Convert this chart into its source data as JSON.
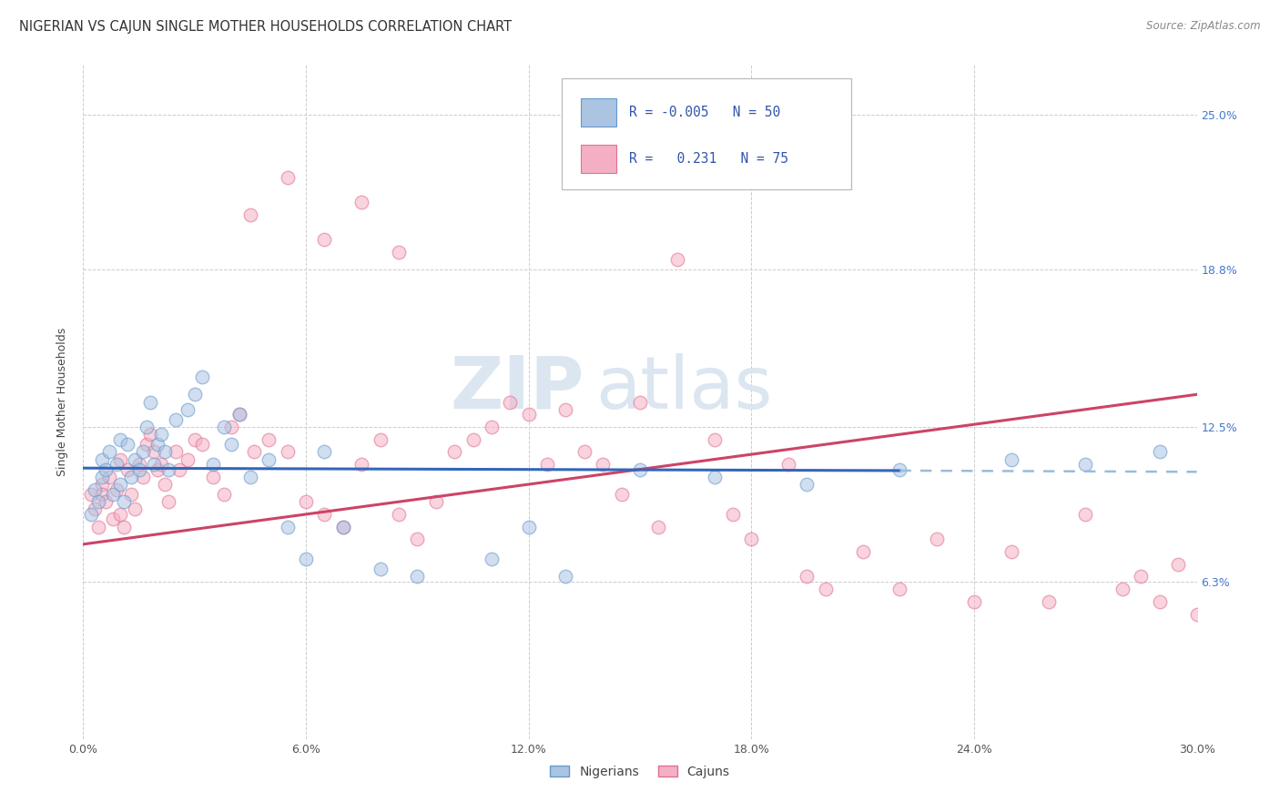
{
  "title": "NIGERIAN VS CAJUN SINGLE MOTHER HOUSEHOLDS CORRELATION CHART",
  "source": "Source: ZipAtlas.com",
  "ylabel": "Single Mother Households",
  "ytick_values": [
    6.3,
    12.5,
    18.8,
    25.0
  ],
  "xlim": [
    0.0,
    30.0
  ],
  "ylim": [
    0.0,
    27.0
  ],
  "legend_r_nigerian": "-0.005",
  "legend_n_nigerian": "50",
  "legend_r_cajun": "0.231",
  "legend_n_cajun": "75",
  "nigerian_color": "#aac4e2",
  "cajun_color": "#f5afc4",
  "nigerian_edge": "#6699cc",
  "cajun_edge": "#e07090",
  "regression_nigerian_color": "#3366bb",
  "regression_cajun_color": "#cc4466",
  "regression_nigerian_dashed_color": "#99bbdd",
  "watermark_zip": "ZIP",
  "watermark_atlas": "atlas",
  "background_color": "#ffffff",
  "grid_color": "#cccccc",
  "title_fontsize": 10.5,
  "axis_label_fontsize": 9,
  "tick_fontsize": 9,
  "scatter_size": 110,
  "scatter_alpha": 0.55,
  "nigerian_x": [
    0.2,
    0.3,
    0.4,
    0.5,
    0.5,
    0.6,
    0.7,
    0.8,
    0.9,
    1.0,
    1.0,
    1.1,
    1.2,
    1.3,
    1.4,
    1.5,
    1.6,
    1.7,
    1.8,
    1.9,
    2.0,
    2.1,
    2.2,
    2.3,
    2.5,
    2.8,
    3.0,
    3.2,
    3.5,
    3.8,
    4.0,
    4.2,
    4.5,
    5.0,
    5.5,
    6.0,
    6.5,
    7.0,
    8.0,
    9.0,
    11.0,
    12.0,
    13.0,
    15.0,
    17.0,
    19.5,
    22.0,
    25.0,
    27.0,
    29.0
  ],
  "nigerian_y": [
    9.0,
    10.0,
    9.5,
    10.5,
    11.2,
    10.8,
    11.5,
    9.8,
    11.0,
    10.2,
    12.0,
    9.5,
    11.8,
    10.5,
    11.2,
    10.8,
    11.5,
    12.5,
    13.5,
    11.0,
    11.8,
    12.2,
    11.5,
    10.8,
    12.8,
    13.2,
    13.8,
    14.5,
    11.0,
    12.5,
    11.8,
    13.0,
    10.5,
    11.2,
    8.5,
    7.2,
    11.5,
    8.5,
    6.8,
    6.5,
    7.2,
    8.5,
    6.5,
    10.8,
    10.5,
    10.2,
    10.8,
    11.2,
    11.0,
    11.5
  ],
  "cajun_x": [
    0.2,
    0.3,
    0.4,
    0.5,
    0.5,
    0.6,
    0.7,
    0.8,
    0.9,
    1.0,
    1.0,
    1.1,
    1.2,
    1.3,
    1.4,
    1.5,
    1.6,
    1.7,
    1.8,
    1.9,
    2.0,
    2.1,
    2.2,
    2.3,
    2.5,
    2.6,
    2.8,
    3.0,
    3.2,
    3.5,
    3.8,
    4.0,
    4.2,
    4.6,
    5.0,
    5.5,
    6.0,
    6.5,
    7.0,
    7.5,
    8.0,
    8.5,
    9.0,
    9.5,
    10.0,
    10.5,
    11.0,
    11.5,
    12.0,
    12.5,
    13.0,
    13.5,
    14.0,
    14.5,
    15.0,
    16.0,
    17.0,
    18.0,
    19.0,
    20.0,
    21.0,
    22.0,
    23.0,
    24.0,
    25.0,
    26.0,
    27.0,
    28.0,
    29.0,
    29.5,
    30.0,
    15.5,
    17.5,
    19.5,
    28.5
  ],
  "cajun_y": [
    9.8,
    9.2,
    8.5,
    10.2,
    9.8,
    9.5,
    10.5,
    8.8,
    10.0,
    9.0,
    11.2,
    8.5,
    10.8,
    9.8,
    9.2,
    11.0,
    10.5,
    11.8,
    12.2,
    11.5,
    10.8,
    11.0,
    10.2,
    9.5,
    11.5,
    10.8,
    11.2,
    12.0,
    11.8,
    10.5,
    9.8,
    12.5,
    13.0,
    11.5,
    12.0,
    11.5,
    9.5,
    9.0,
    8.5,
    11.0,
    12.0,
    9.0,
    8.0,
    9.5,
    11.5,
    12.0,
    12.5,
    13.5,
    13.0,
    11.0,
    13.2,
    11.5,
    11.0,
    9.8,
    13.5,
    19.2,
    12.0,
    8.0,
    11.0,
    6.0,
    7.5,
    6.0,
    8.0,
    5.5,
    7.5,
    5.5,
    9.0,
    6.0,
    5.5,
    7.0,
    5.0,
    8.5,
    9.0,
    6.5,
    6.5
  ],
  "cajun_high_x": [
    4.5,
    5.5,
    6.5,
    7.5,
    8.5
  ],
  "cajun_high_y": [
    21.0,
    22.5,
    20.0,
    21.5,
    19.5
  ],
  "nigerian_reg_x0": 0.0,
  "nigerian_reg_y0": 10.85,
  "nigerian_reg_x1": 22.0,
  "nigerian_reg_y1": 10.75,
  "nigerian_dashed_x0": 22.0,
  "nigerian_dashed_y0": 10.75,
  "nigerian_dashed_x1": 30.0,
  "nigerian_dashed_y1": 10.7,
  "cajun_reg_x0": 0.0,
  "cajun_reg_y0": 7.8,
  "cajun_reg_x1": 30.0,
  "cajun_reg_y1": 13.8
}
